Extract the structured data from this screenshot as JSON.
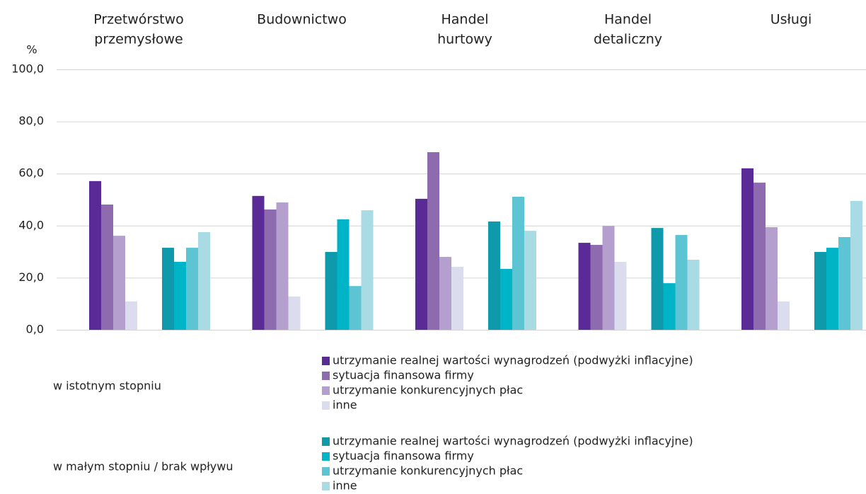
{
  "chart_data": {
    "type": "grouped_bar",
    "y_label": "%",
    "categories": [
      [
        "Przetwórstwo",
        "przemysłowe"
      ],
      [
        "Budownictwo"
      ],
      [
        "Handel",
        "hurtowy"
      ],
      [
        "Handel",
        "detaliczny"
      ],
      [
        "Usługi"
      ]
    ],
    "ylim": [
      0,
      100
    ],
    "yticks": [
      {
        "value": 0,
        "label": "0,0"
      },
      {
        "value": 20,
        "label": "20,0"
      },
      {
        "value": 40,
        "label": "40,0"
      },
      {
        "value": 60,
        "label": "60,0"
      },
      {
        "value": 80,
        "label": "80,0"
      },
      {
        "value": 100,
        "label": "100,0"
      }
    ],
    "grid": true,
    "groups": [
      {
        "name": "w istotnym stopniu",
        "series": [
          {
            "name": "utrzymanie realnej wartości wynagrodzeń (podwyżki inflacyjne)",
            "color": "#5a2a96",
            "values": [
              57.1,
              51.4,
              50.3,
              33.4,
              62.0
            ]
          },
          {
            "name": "sytuacja finansowa firmy",
            "color": "#8e6aae",
            "values": [
              48.1,
              46.2,
              68.2,
              32.6,
              56.5
            ]
          },
          {
            "name": "utrzymanie konkurencyjnych płac",
            "color": "#b49fcf",
            "values": [
              36.1,
              48.9,
              28.0,
              39.9,
              39.4
            ]
          },
          {
            "name": "inne",
            "color": "#dcdcef",
            "values": [
              10.9,
              12.8,
              24.2,
              26.1,
              10.9
            ]
          }
        ]
      },
      {
        "name": "w małym stopniu / brak wpływu",
        "series": [
          {
            "name": "utrzymanie realnej wartości wynagrodzeń (podwyżki inflacyjne)",
            "color": "#0e9aaa",
            "values": [
              31.5,
              29.9,
              41.6,
              39.1,
              29.9
            ]
          },
          {
            "name": "sytuacja finansowa firmy",
            "color": "#00b4c8",
            "values": [
              26.1,
              42.4,
              23.4,
              17.9,
              31.5
            ]
          },
          {
            "name": "utrzymanie konkurencyjnych płac",
            "color": "#5cc4d2",
            "values": [
              31.5,
              16.8,
              51.1,
              36.4,
              35.6
            ]
          },
          {
            "name": "inne",
            "color": "#a8dbe4",
            "values": [
              37.5,
              45.9,
              38.0,
              26.9,
              49.5
            ]
          }
        ]
      }
    ]
  }
}
